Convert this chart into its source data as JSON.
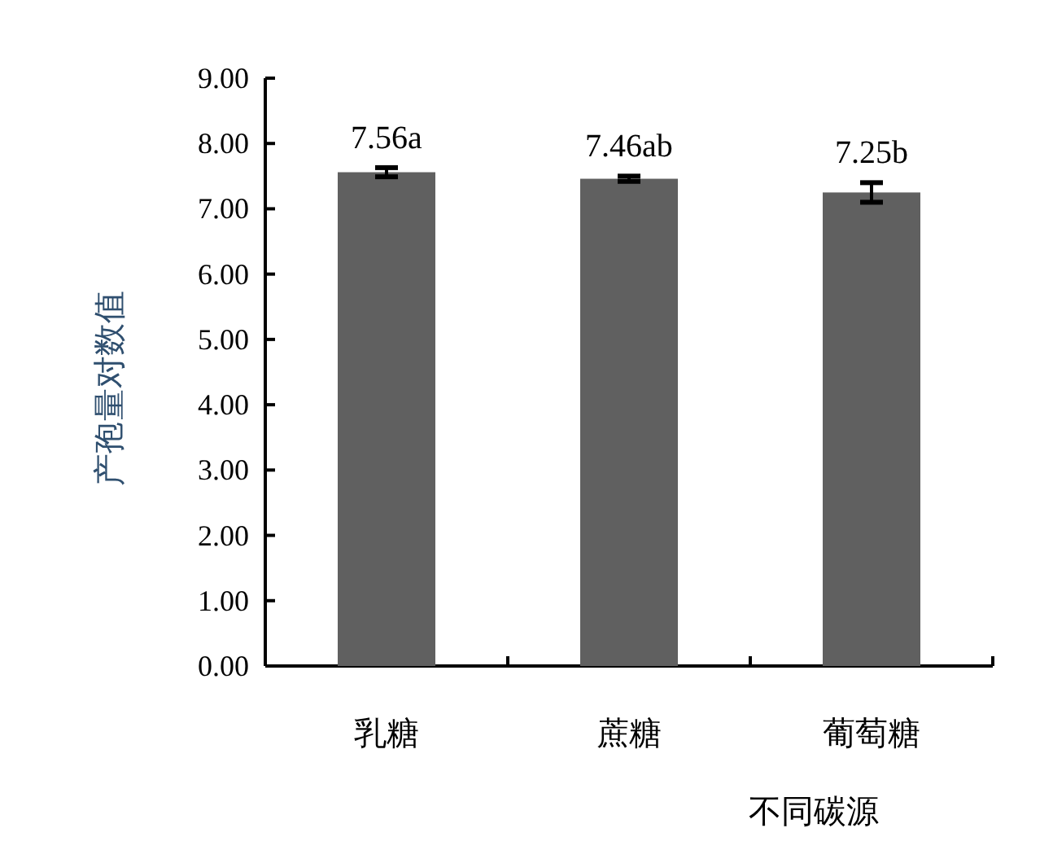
{
  "chart_data": {
    "type": "bar",
    "xlabel": "不同碳源",
    "ylabel": "产孢量对数值",
    "categories": [
      "乳糖",
      "蔗糖",
      "葡萄糖"
    ],
    "values": [
      7.56,
      7.46,
      7.25
    ],
    "color": "#606060",
    "errors": [
      0.07,
      0.04,
      0.15
    ],
    "value_labels": [
      "7.56a",
      "7.46ab",
      "7.25b"
    ],
    "ylim": [
      0,
      9
    ],
    "yticks": [
      {
        "value": 0,
        "label": "0.00"
      },
      {
        "value": 1,
        "label": "1.00"
      },
      {
        "value": 2,
        "label": "2.00"
      },
      {
        "value": 3,
        "label": "3.00"
      },
      {
        "value": 4,
        "label": "4.00"
      },
      {
        "value": 5,
        "label": "5.00"
      },
      {
        "value": 6,
        "label": "6.00"
      },
      {
        "value": 7,
        "label": "7.00"
      },
      {
        "value": 8,
        "label": "8.00"
      },
      {
        "value": 9,
        "label": "9.00"
      }
    ],
    "grid": false
  }
}
